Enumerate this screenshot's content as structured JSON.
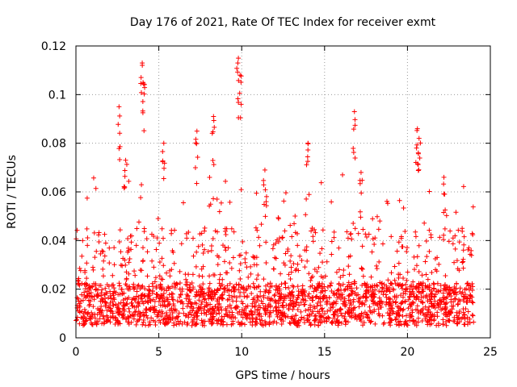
{
  "chart_data": {
    "type": "scatter",
    "title": "Day 176 of 2021, Rate Of TEC Index for receiver exmt",
    "xlabel": "GPS time / hours",
    "ylabel": "ROTI / TECUs",
    "xlim": [
      0,
      25
    ],
    "ylim": [
      0,
      0.12
    ],
    "xticks": [
      0,
      5,
      10,
      15,
      20,
      25
    ],
    "xtick_labels": [
      "0",
      "5",
      "10",
      "15",
      "20",
      "25"
    ],
    "yticks": [
      0,
      0.02,
      0.04,
      0.06,
      0.08,
      0.1,
      0.12
    ],
    "ytick_labels": [
      "0",
      "0.02",
      "0.04",
      "0.06",
      "0.08",
      "0.1",
      "0.12"
    ],
    "grid": true,
    "marker": "+",
    "series": [
      {
        "name": "ROTI",
        "color": "#ff0000",
        "x_range": [
          0,
          24
        ],
        "typical_range": [
          0.005,
          0.03
        ],
        "peaks": [
          {
            "x": 2.6,
            "y": 0.095
          },
          {
            "x": 3.0,
            "y": 0.073
          },
          {
            "x": 4.0,
            "y": 0.113
          },
          {
            "x": 4.05,
            "y": 0.105
          },
          {
            "x": 5.3,
            "y": 0.08
          },
          {
            "x": 7.3,
            "y": 0.085
          },
          {
            "x": 8.3,
            "y": 0.091
          },
          {
            "x": 9.8,
            "y": 0.115
          },
          {
            "x": 9.9,
            "y": 0.108
          },
          {
            "x": 11.4,
            "y": 0.069
          },
          {
            "x": 14.0,
            "y": 0.08
          },
          {
            "x": 16.8,
            "y": 0.093
          },
          {
            "x": 17.2,
            "y": 0.068
          },
          {
            "x": 20.6,
            "y": 0.086
          },
          {
            "x": 20.7,
            "y": 0.082
          },
          {
            "x": 22.2,
            "y": 0.066
          },
          {
            "x": 23.3,
            "y": 0.045
          }
        ]
      }
    ]
  }
}
